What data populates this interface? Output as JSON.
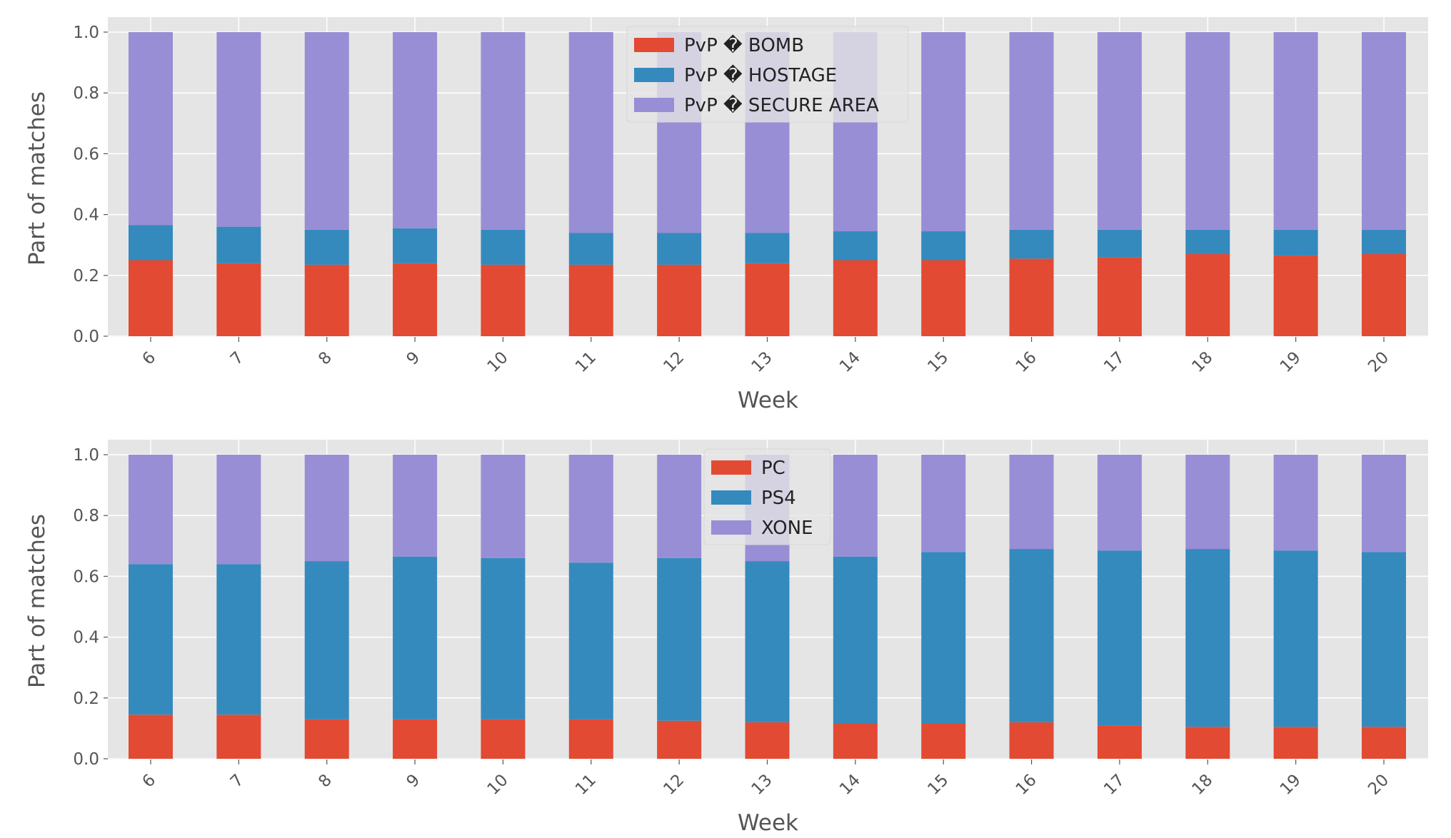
{
  "chart_data": [
    {
      "type": "bar",
      "stacked": true,
      "xlabel": "Week",
      "ylabel": "Part of matches",
      "ylim": [
        0,
        1.05
      ],
      "yticks": [
        "0.0",
        "0.2",
        "0.4",
        "0.6",
        "0.8",
        "1.0"
      ],
      "grid": true,
      "legend_placement": "upper center",
      "categories": [
        "6",
        "7",
        "8",
        "9",
        "10",
        "11",
        "12",
        "13",
        "14",
        "15",
        "16",
        "17",
        "18",
        "19",
        "20"
      ],
      "series": [
        {
          "name": "PvP � BOMB",
          "color": "#E24A33",
          "values": [
            0.25,
            0.24,
            0.235,
            0.24,
            0.235,
            0.235,
            0.235,
            0.24,
            0.25,
            0.25,
            0.255,
            0.26,
            0.27,
            0.265,
            0.27
          ]
        },
        {
          "name": "PvP � HOSTAGE",
          "color": "#348ABD",
          "values": [
            0.115,
            0.12,
            0.115,
            0.115,
            0.115,
            0.105,
            0.105,
            0.1,
            0.095,
            0.095,
            0.095,
            0.09,
            0.08,
            0.085,
            0.08
          ]
        },
        {
          "name": "PvP � SECURE AREA",
          "color": "#988ED5",
          "values": [
            0.635,
            0.64,
            0.65,
            0.645,
            0.65,
            0.66,
            0.66,
            0.66,
            0.655,
            0.655,
            0.65,
            0.65,
            0.65,
            0.65,
            0.65
          ]
        }
      ]
    },
    {
      "type": "bar",
      "stacked": true,
      "xlabel": "Week",
      "ylabel": "Part of matches",
      "ylim": [
        0,
        1.05
      ],
      "yticks": [
        "0.0",
        "0.2",
        "0.4",
        "0.6",
        "0.8",
        "1.0"
      ],
      "grid": true,
      "legend_placement": "upper center",
      "categories": [
        "6",
        "7",
        "8",
        "9",
        "10",
        "11",
        "12",
        "13",
        "14",
        "15",
        "16",
        "17",
        "18",
        "19",
        "20"
      ],
      "series": [
        {
          "name": "PC",
          "color": "#E24A33",
          "values": [
            0.145,
            0.145,
            0.13,
            0.13,
            0.13,
            0.13,
            0.125,
            0.12,
            0.115,
            0.115,
            0.12,
            0.11,
            0.105,
            0.105,
            0.105
          ]
        },
        {
          "name": "PS4",
          "color": "#348ABD",
          "values": [
            0.495,
            0.495,
            0.52,
            0.535,
            0.53,
            0.515,
            0.535,
            0.53,
            0.55,
            0.565,
            0.57,
            0.575,
            0.585,
            0.58,
            0.575
          ]
        },
        {
          "name": "XONE",
          "color": "#988ED5",
          "values": [
            0.36,
            0.36,
            0.35,
            0.335,
            0.34,
            0.355,
            0.34,
            0.35,
            0.335,
            0.32,
            0.31,
            0.315,
            0.31,
            0.315,
            0.32
          ]
        }
      ]
    }
  ]
}
